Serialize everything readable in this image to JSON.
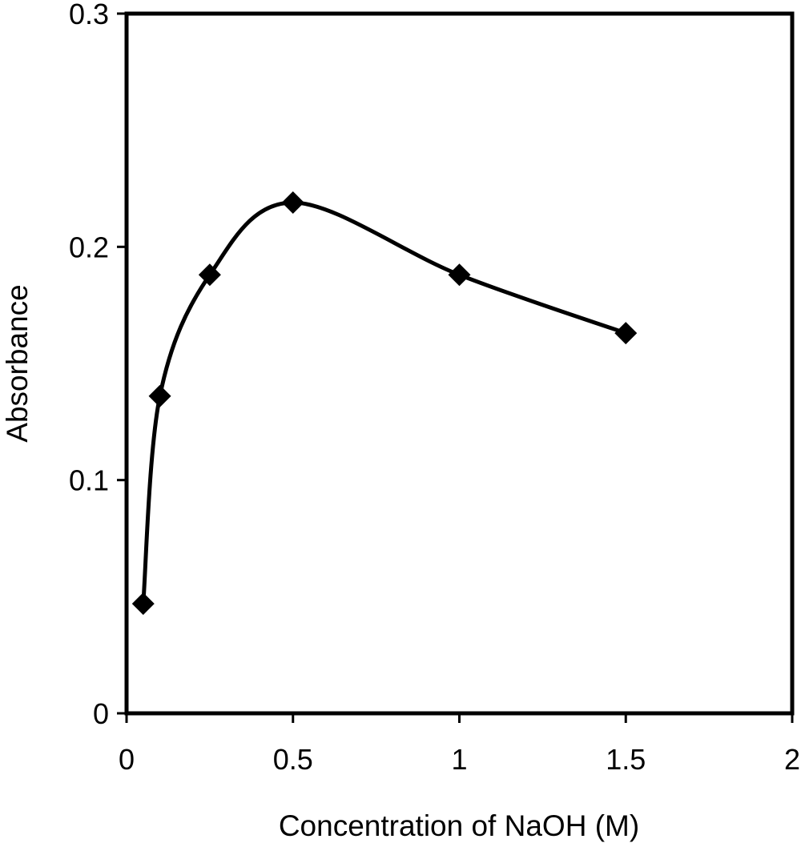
{
  "chart_data": {
    "type": "line",
    "title": "",
    "xlabel": "Concentration of NaOH (M)",
    "ylabel": "Absorbance",
    "xlim": [
      0,
      2
    ],
    "ylim": [
      0,
      0.3
    ],
    "x_ticks": [
      "0",
      "0.5",
      "1",
      "1.5",
      "2"
    ],
    "y_ticks": [
      "0",
      "0.1",
      "0.2",
      "0.3"
    ],
    "grid": false,
    "legend": "none",
    "smoothed": true,
    "marker": "diamond",
    "series": [
      {
        "x": [
          0.05,
          0.1,
          0.25,
          0.5,
          1.0,
          1.5
        ],
        "y": [
          0.047,
          0.136,
          0.188,
          0.219,
          0.188,
          0.163
        ]
      }
    ],
    "colors": {
      "line": "#000000",
      "marker": "#000000",
      "frame": "#000000",
      "background": "#ffffff"
    }
  }
}
